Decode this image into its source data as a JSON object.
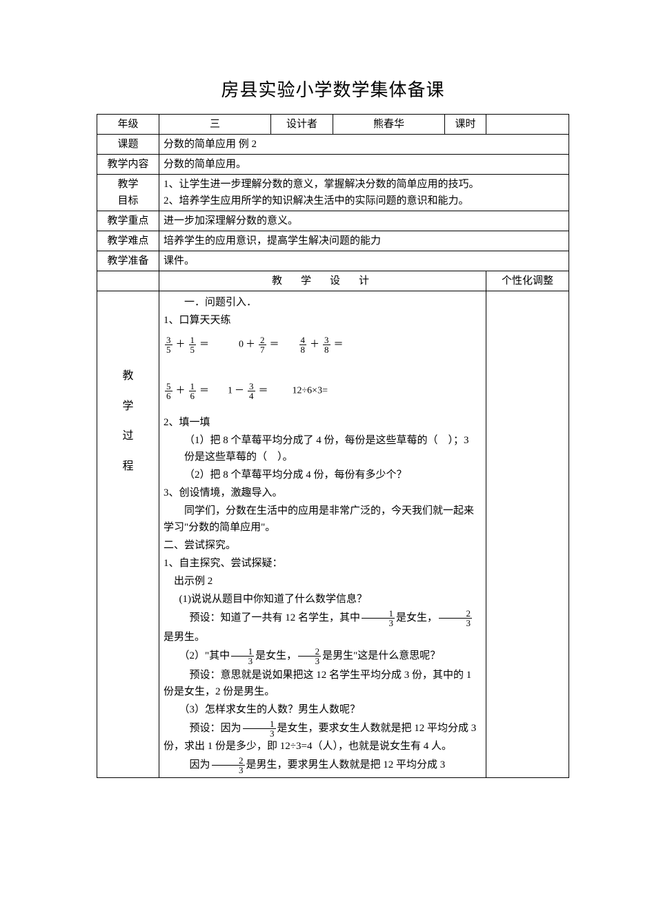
{
  "title": "房县实验小学数学集体备课",
  "header": {
    "row1": {
      "l1": "年级",
      "v1": "三",
      "l2": "设计者",
      "v2": "熊春华",
      "l3": "课时",
      "v3": ""
    },
    "row2": {
      "l": "课题",
      "v": "分数的简单应用 例 2"
    },
    "row3": {
      "l": "教学内容",
      "v": "分数的简单应用。"
    },
    "row4": {
      "l1": "教学",
      "l2": "目标",
      "v1": "1、让学生进一步理解分数的意义，掌握解决分数的简单应用的技巧。",
      "v2": "2、培养学生应用所学的知识解决生活中的实际问题的意识和能力。"
    },
    "row5": {
      "l": "教学重点",
      "v": "进一步加深理解分数的意义。"
    },
    "row6": {
      "l": "教学难点",
      "v": "培养学生的应用意识，提高学生解决问题的能力"
    },
    "row7": {
      "l": "教学准备",
      "v": "课件。"
    }
  },
  "designRow": {
    "left": "",
    "center": "教　学　设　计",
    "right": "个性化调整"
  },
  "sideLabel": {
    "c1": "教",
    "c2": "学",
    "c3": "过",
    "c4": "程"
  },
  "body": {
    "p01": "一．问题引入．",
    "p02": "1、口算天天练",
    "math1": [
      {
        "n": "3",
        "d": "5"
      },
      {
        "op": "＋"
      },
      {
        "n": "1",
        "d": "5"
      },
      {
        "op": "＝"
      },
      {
        "sp": "     "
      },
      {
        "t": "0"
      },
      {
        "op": "＋"
      },
      {
        "n": "2",
        "d": "7"
      },
      {
        "op": "＝"
      },
      {
        "sp": "   "
      },
      {
        "n": "4",
        "d": "8"
      },
      {
        "op": "＋"
      },
      {
        "n": "3",
        "d": "8"
      },
      {
        "op": "＝"
      }
    ],
    "math2": [
      {
        "n": "5",
        "d": "6"
      },
      {
        "op": "＋"
      },
      {
        "n": "1",
        "d": "6"
      },
      {
        "op": "＝"
      },
      {
        "sp": "   "
      },
      {
        "t": "1"
      },
      {
        "op": "－"
      },
      {
        "n": "3",
        "d": "4"
      },
      {
        "op": "＝"
      },
      {
        "sp": "    "
      },
      {
        "t": "12÷6×3="
      }
    ],
    "p03": "2、填一填",
    "p04": "（1）把 8 个草莓平均分成了 4 份，每份是这些草莓的（　）；3 份是这些草莓的（　）。",
    "p05": "（2）把 8 个草莓平均分成 4 份，每份有多少个？",
    "p06": "3、创设情境，激趣导入。",
    "p07": "同学们，分数在生活中的应用是非常广泛的，今天我们就一起来学习\"分数的简单应用\"。",
    "p08": "二、尝试探究。",
    "p09": "1、自主探究、尝试探疑：",
    "p10": "出示例 2",
    "p11": "(1)说说从题目中你知道了什么数学信息？",
    "p12a": "预设：知道了一共有 12 名学生，其中",
    "p12f1": {
      "n": "1",
      "d": "3"
    },
    "p12b": "是女生，",
    "p12f2": {
      "n": "2",
      "d": "3"
    },
    "p12c": "是男生。",
    "p13a": "（2）\"其中",
    "p13f1": {
      "n": "1",
      "d": "3"
    },
    "p13b": "是女生，",
    "p13f2": {
      "n": "2",
      "d": "3"
    },
    "p13c": "是男生\"这是什么意思呢？",
    "p14": "预设：意思就是说如果把这 12 名学生平均分成 3 份，其中的 1 份是女生，2 份是男生。",
    "p15": "（3）怎样求女生的人数？男生人数呢？",
    "p16a": "预设：因为",
    "p16f": {
      "n": "1",
      "d": "3"
    },
    "p16b": "是女生，要求女生人数就是把 12 平均分成 3 份，求出 1 份是多少，即 12÷3=4（人），也就是说女生有 4 人。",
    "p17a": "因为",
    "p17f": {
      "n": "2",
      "d": "3"
    },
    "p17b": "是男生，要求男生人数就是把 12 平均分成 3"
  }
}
